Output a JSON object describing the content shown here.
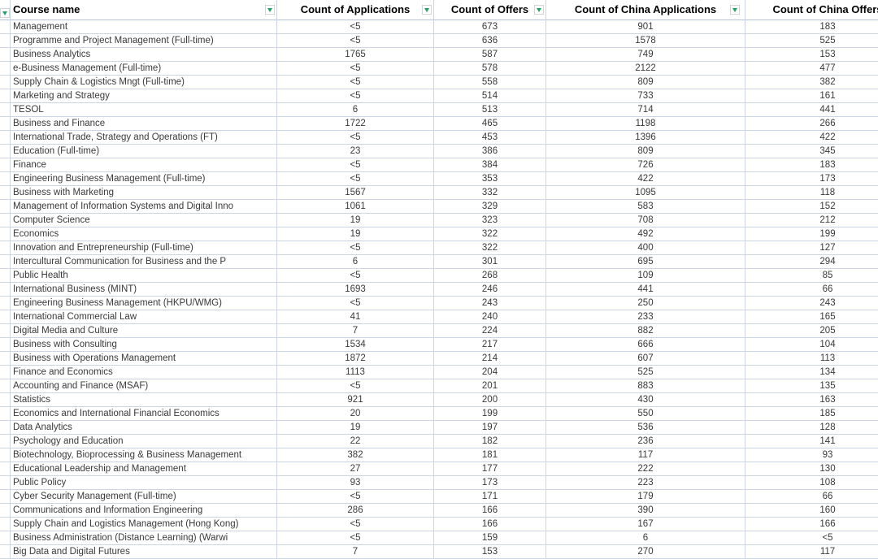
{
  "app": {
    "type": "spreadsheet-table"
  },
  "colors": {
    "gridline": "#cdd5e4",
    "filter_arrow_green": "#21a366",
    "header_text": "#000000",
    "body_text": "#3a3a3a",
    "background": "#ffffff"
  },
  "icons": {
    "filter_dropdown": "filter-dropdown-arrow"
  },
  "table": {
    "columns": [
      {
        "label": ""
      },
      {
        "label": "Course name"
      },
      {
        "label": "Count of Applications"
      },
      {
        "label": "Count of Offers"
      },
      {
        "label": "Count of China Applications"
      },
      {
        "label": "Count of China Offers"
      }
    ],
    "rows": [
      {
        "name": "Management",
        "applications": "<5",
        "offers": "673",
        "china_applications": "901",
        "china_offers": "183"
      },
      {
        "name": "Programme and Project Management (Full-time)",
        "applications": "<5",
        "offers": "636",
        "china_applications": "1578",
        "china_offers": "525"
      },
      {
        "name": "Business Analytics",
        "applications": "1765",
        "offers": "587",
        "china_applications": "749",
        "china_offers": "153"
      },
      {
        "name": "e-Business Management (Full-time)",
        "applications": "<5",
        "offers": "578",
        "china_applications": "2122",
        "china_offers": "477"
      },
      {
        "name": "Supply Chain & Logistics Mngt (Full-time)",
        "applications": "<5",
        "offers": "558",
        "china_applications": "809",
        "china_offers": "382"
      },
      {
        "name": "Marketing and Strategy",
        "applications": "<5",
        "offers": "514",
        "china_applications": "733",
        "china_offers": "161"
      },
      {
        "name": "TESOL",
        "applications": "6",
        "offers": "513",
        "china_applications": "714",
        "china_offers": "441"
      },
      {
        "name": "Business and Finance",
        "applications": "1722",
        "offers": "465",
        "china_applications": "1198",
        "china_offers": "266"
      },
      {
        "name": "International Trade, Strategy and Operations (FT)",
        "applications": "<5",
        "offers": "453",
        "china_applications": "1396",
        "china_offers": "422"
      },
      {
        "name": "Education (Full-time)",
        "applications": "23",
        "offers": "386",
        "china_applications": "809",
        "china_offers": "345"
      },
      {
        "name": "Finance",
        "applications": "<5",
        "offers": "384",
        "china_applications": "726",
        "china_offers": "183"
      },
      {
        "name": "Engineering Business Management (Full-time)",
        "applications": "<5",
        "offers": "353",
        "china_applications": "422",
        "china_offers": "173"
      },
      {
        "name": "Business with Marketing",
        "applications": "1567",
        "offers": "332",
        "china_applications": "1095",
        "china_offers": "118"
      },
      {
        "name": "Management of Information Systems and Digital Inno",
        "applications": "1061",
        "offers": "329",
        "china_applications": "583",
        "china_offers": "152"
      },
      {
        "name": "Computer Science",
        "applications": "19",
        "offers": "323",
        "china_applications": "708",
        "china_offers": "212"
      },
      {
        "name": "Economics",
        "applications": "19",
        "offers": "322",
        "china_applications": "492",
        "china_offers": "199"
      },
      {
        "name": "Innovation and Entrepreneurship (Full-time)",
        "applications": "<5",
        "offers": "322",
        "china_applications": "400",
        "china_offers": "127"
      },
      {
        "name": "Intercultural Communication for Business and the P",
        "applications": "6",
        "offers": "301",
        "china_applications": "695",
        "china_offers": "294"
      },
      {
        "name": "Public Health",
        "applications": "<5",
        "offers": "268",
        "china_applications": "109",
        "china_offers": "85"
      },
      {
        "name": "International Business (MINT)",
        "applications": "1693",
        "offers": "246",
        "china_applications": "441",
        "china_offers": "66"
      },
      {
        "name": "Engineering Business Management (HKPU/WMG)",
        "applications": "<5",
        "offers": "243",
        "china_applications": "250",
        "china_offers": "243"
      },
      {
        "name": "International Commercial Law",
        "applications": "41",
        "offers": "240",
        "china_applications": "233",
        "china_offers": "165"
      },
      {
        "name": "Digital Media and Culture",
        "applications": "7",
        "offers": "224",
        "china_applications": "882",
        "china_offers": "205"
      },
      {
        "name": "Business with Consulting",
        "applications": "1534",
        "offers": "217",
        "china_applications": "666",
        "china_offers": "104"
      },
      {
        "name": "Business with Operations Management",
        "applications": "1872",
        "offers": "214",
        "china_applications": "607",
        "china_offers": "113"
      },
      {
        "name": "Finance and Economics",
        "applications": "1113",
        "offers": "204",
        "china_applications": "525",
        "china_offers": "134"
      },
      {
        "name": "Accounting and Finance (MSAF)",
        "applications": "<5",
        "offers": "201",
        "china_applications": "883",
        "china_offers": "135"
      },
      {
        "name": "Statistics",
        "applications": "921",
        "offers": "200",
        "china_applications": "430",
        "china_offers": "163"
      },
      {
        "name": "Economics and International Financial Economics",
        "applications": "20",
        "offers": "199",
        "china_applications": "550",
        "china_offers": "185"
      },
      {
        "name": "Data Analytics",
        "applications": "19",
        "offers": "197",
        "china_applications": "536",
        "china_offers": "128"
      },
      {
        "name": "Psychology and Education",
        "applications": "22",
        "offers": "182",
        "china_applications": "236",
        "china_offers": "141"
      },
      {
        "name": "Biotechnology, Bioprocessing & Business Management",
        "applications": "382",
        "offers": "181",
        "china_applications": "117",
        "china_offers": "93"
      },
      {
        "name": "Educational Leadership and Management",
        "applications": "27",
        "offers": "177",
        "china_applications": "222",
        "china_offers": "130"
      },
      {
        "name": "Public Policy",
        "applications": "93",
        "offers": "173",
        "china_applications": "223",
        "china_offers": "108"
      },
      {
        "name": "Cyber Security Management (Full-time)",
        "applications": "<5",
        "offers": "171",
        "china_applications": "179",
        "china_offers": "66"
      },
      {
        "name": "Communications and Information Engineering",
        "applications": "286",
        "offers": "166",
        "china_applications": "390",
        "china_offers": "160"
      },
      {
        "name": "Supply Chain and Logistics Management (Hong Kong)",
        "applications": "<5",
        "offers": "166",
        "china_applications": "167",
        "china_offers": "166"
      },
      {
        "name": "Business Administration (Distance Learning) (Warwi",
        "applications": "<5",
        "offers": "159",
        "china_applications": "6",
        "china_offers": "<5"
      },
      {
        "name": "Big Data and Digital Futures",
        "applications": "7",
        "offers": "153",
        "china_applications": "270",
        "china_offers": "117"
      }
    ]
  }
}
